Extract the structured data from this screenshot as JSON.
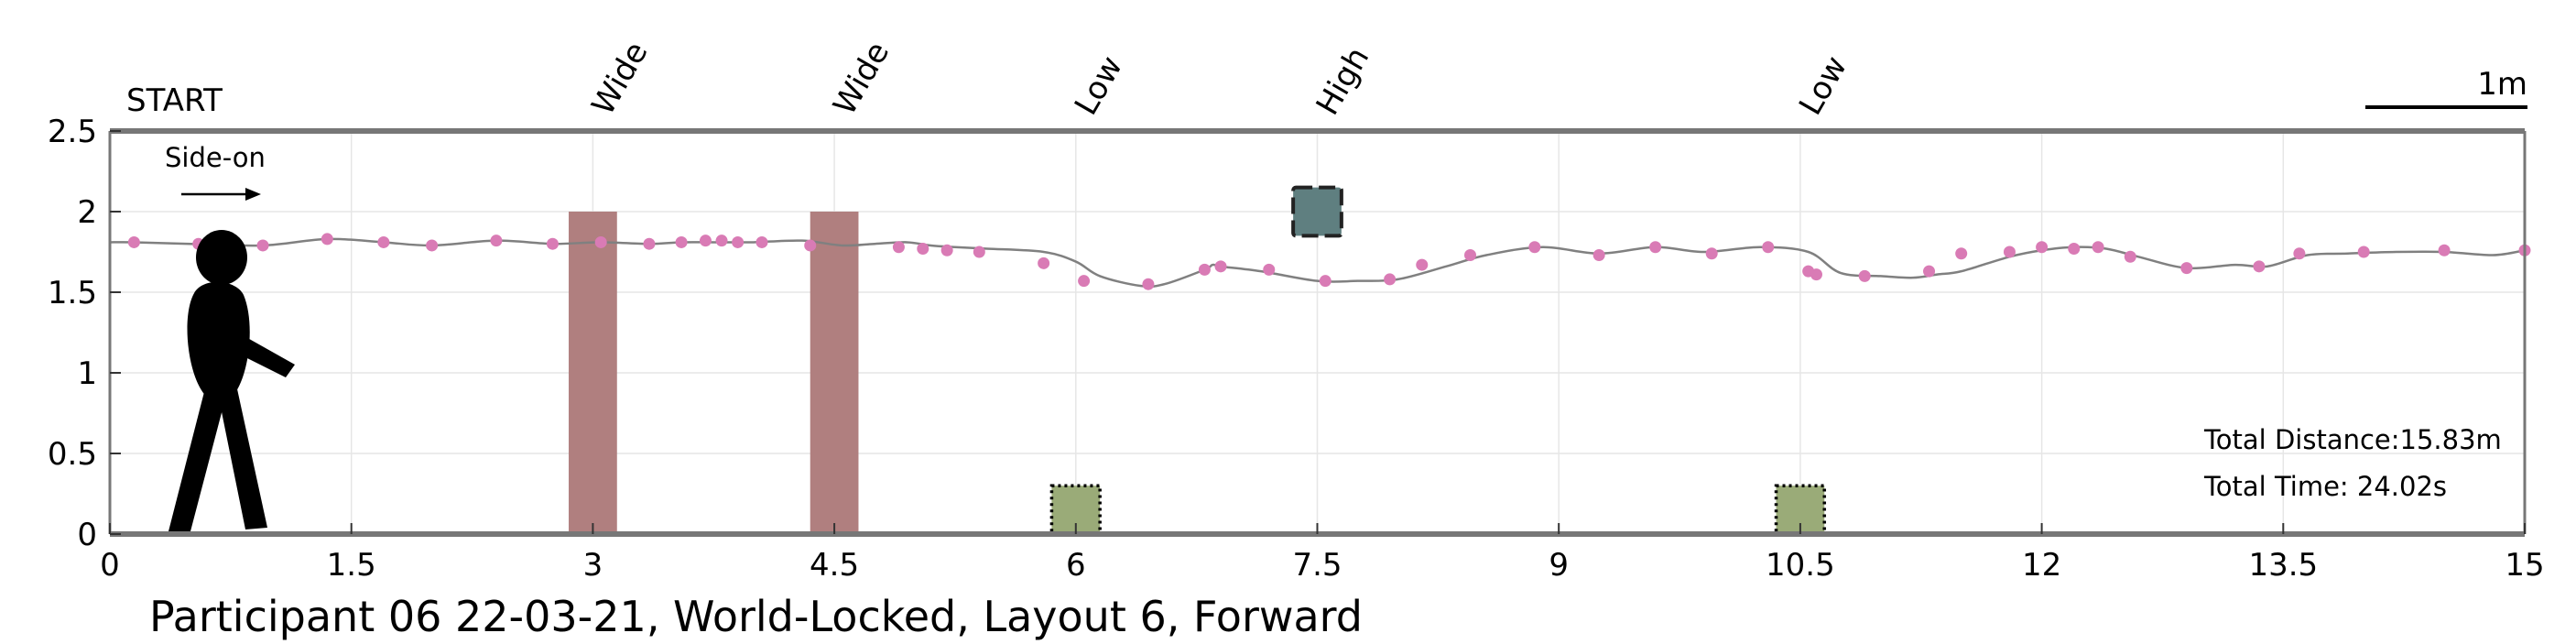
{
  "chart_data": {
    "type": "line",
    "title": "Participant 06 22-03-21, World-Locked, Layout 6, Forward",
    "start_label": "START",
    "direction_label": "Side-on",
    "scale_label": "1m",
    "xlim": [
      0,
      15
    ],
    "ylim": [
      0,
      2.5
    ],
    "x_ticks": [
      "0",
      "1.5",
      "3",
      "4.5",
      "6",
      "7.5",
      "9",
      "10.5",
      "12",
      "13.5",
      "15"
    ],
    "y_ticks": [
      "0",
      "0.5",
      "1",
      "1.5",
      "2",
      "2.5"
    ],
    "grid": true,
    "obstacle_labels": [
      {
        "x": 3.0,
        "label": "Wide"
      },
      {
        "x": 4.5,
        "label": "Wide"
      },
      {
        "x": 6.0,
        "label": "Low"
      },
      {
        "x": 7.5,
        "label": "High"
      },
      {
        "x": 10.5,
        "label": "Low"
      }
    ],
    "obstacles": [
      {
        "type": "wide",
        "x0": 2.85,
        "x1": 3.15,
        "y0": 0,
        "y1": 2.0,
        "color": "#b07f7f"
      },
      {
        "type": "wide",
        "x0": 4.35,
        "x1": 4.65,
        "y0": 0,
        "y1": 2.0,
        "color": "#b07f7f"
      },
      {
        "type": "low",
        "x0": 5.85,
        "x1": 6.15,
        "y0": 0,
        "y1": 0.3,
        "color": "#9aab78"
      },
      {
        "type": "high",
        "x0": 7.35,
        "x1": 7.65,
        "y0": 1.85,
        "y1": 2.15,
        "color": "#5f7f80"
      },
      {
        "type": "low",
        "x0": 10.35,
        "x1": 10.65,
        "y0": 0,
        "y1": 0.3,
        "color": "#9aab78"
      }
    ],
    "series": [
      {
        "line_color": "#808080",
        "marker_color": "#d97bb5",
        "x": [
          0,
          0.15,
          0.5,
          0.95,
          1.35,
          1.7,
          2.0,
          2.4,
          2.75,
          3.05,
          3.35,
          3.55,
          3.75,
          3.85,
          4.0,
          4.3,
          4.55,
          4.75,
          4.95,
          5.1,
          5.25,
          5.45,
          5.8,
          6.0,
          6.15,
          6.4,
          6.55,
          6.8,
          6.85,
          6.9,
          7.15,
          7.5,
          7.75,
          8.0,
          8.3,
          8.55,
          8.9,
          9.25,
          9.6,
          9.9,
          10.25,
          10.55,
          10.75,
          11.0,
          11.2,
          11.35,
          11.5,
          11.8,
          12.0,
          12.2,
          12.4,
          12.6,
          12.9,
          13.2,
          13.4,
          13.65,
          13.9,
          14.2,
          14.5,
          14.8,
          15.0
        ],
        "y": [
          1.81,
          1.81,
          1.8,
          1.79,
          1.83,
          1.81,
          1.79,
          1.82,
          1.8,
          1.81,
          1.8,
          1.81,
          1.81,
          1.81,
          1.81,
          1.82,
          1.79,
          1.8,
          1.81,
          1.79,
          1.78,
          1.77,
          1.75,
          1.69,
          1.6,
          1.54,
          1.55,
          1.64,
          1.67,
          1.66,
          1.63,
          1.57,
          1.57,
          1.58,
          1.66,
          1.73,
          1.78,
          1.74,
          1.78,
          1.75,
          1.78,
          1.75,
          1.62,
          1.6,
          1.59,
          1.61,
          1.63,
          1.72,
          1.76,
          1.78,
          1.77,
          1.72,
          1.65,
          1.67,
          1.66,
          1.73,
          1.74,
          1.75,
          1.75,
          1.73,
          1.76
        ],
        "markers_x": [
          0.15,
          0.55,
          0.95,
          1.35,
          1.7,
          2.0,
          2.4,
          2.75,
          3.05,
          3.35,
          3.55,
          3.7,
          3.8,
          3.9,
          4.05,
          4.35,
          4.9,
          5.05,
          5.2,
          5.4,
          5.8,
          6.05,
          6.45,
          6.8,
          6.9,
          7.2,
          7.55,
          7.95,
          8.15,
          8.45,
          8.85,
          9.25,
          9.6,
          9.95,
          10.3,
          10.55,
          10.6,
          10.9,
          11.3,
          11.5,
          11.8,
          12.0,
          12.2,
          12.35,
          12.55,
          12.9,
          13.35,
          13.6,
          14.0,
          14.5,
          15.0
        ],
        "markers_y": [
          1.81,
          1.8,
          1.79,
          1.83,
          1.81,
          1.79,
          1.82,
          1.8,
          1.81,
          1.8,
          1.81,
          1.82,
          1.82,
          1.81,
          1.81,
          1.79,
          1.78,
          1.77,
          1.76,
          1.75,
          1.68,
          1.57,
          1.55,
          1.64,
          1.66,
          1.64,
          1.57,
          1.58,
          1.67,
          1.73,
          1.78,
          1.73,
          1.78,
          1.74,
          1.78,
          1.63,
          1.61,
          1.6,
          1.63,
          1.74,
          1.75,
          1.78,
          1.77,
          1.78,
          1.72,
          1.65,
          1.66,
          1.74,
          1.75,
          1.76,
          1.76
        ]
      }
    ],
    "stats": {
      "distance": "Total Distance:15.83m",
      "time": "Total Time: 24.02s"
    }
  }
}
